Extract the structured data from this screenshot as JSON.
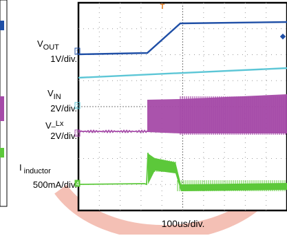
{
  "chart_data": {
    "type": "line",
    "xlabel": "100us/div.",
    "x_divisions": 10,
    "y_divisions": 8,
    "trigger_marker": "T",
    "trigger_level_marker": "◆",
    "channels": [
      {
        "name": "VOUT",
        "label_main": "V",
        "label_sub": "OUT",
        "scale": "1V/div.",
        "marker": "1",
        "color": "#1f4fa6"
      },
      {
        "name": "VIN",
        "label_main": "V",
        "label_sub": "IN",
        "scale": "2V/div.",
        "marker": "2",
        "color": "#5cc6d6"
      },
      {
        "name": "V_Lx",
        "label_main": "V",
        "label_sub": "_Lx",
        "scale": "2V/div.",
        "marker": "3",
        "color": "#a54aa8"
      },
      {
        "name": "I_inductor",
        "label_main": "I",
        "label_sub": "inductor",
        "scale": "500mA/div.",
        "marker": "4",
        "color": "#5cc83a"
      }
    ]
  }
}
